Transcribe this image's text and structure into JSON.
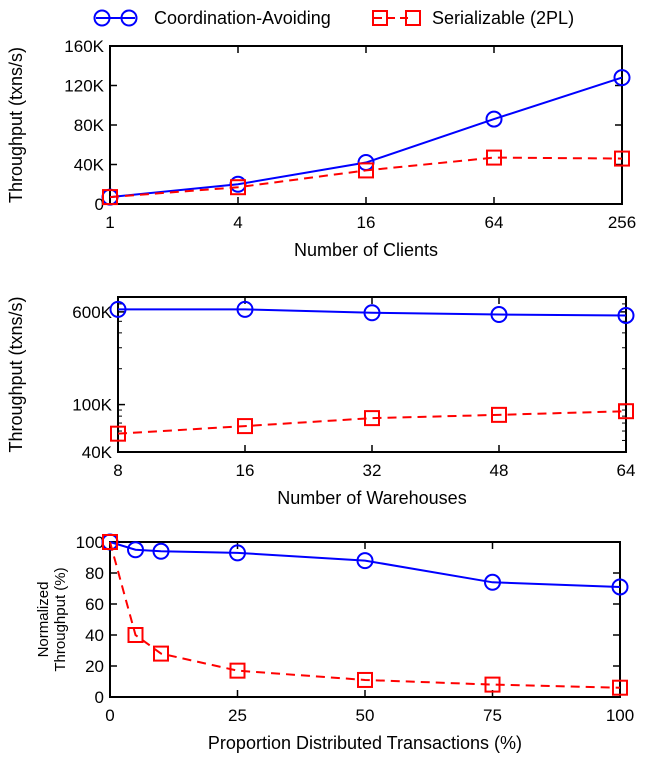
{
  "legend": {
    "series": [
      {
        "name": "Coordination-Avoiding",
        "color": "#0000ff",
        "marker": "circle",
        "dash": "solid"
      },
      {
        "name": "Serializable (2PL)",
        "color": "#ff0000",
        "marker": "square",
        "dash": "dashed"
      }
    ]
  },
  "chart_data": [
    {
      "type": "line",
      "xlabel": "Number of Clients",
      "ylabel": "Throughput (txns/s)",
      "xscale": "log2",
      "x": [
        1,
        4,
        16,
        64,
        256
      ],
      "xticks": [
        "1",
        "4",
        "16",
        "64",
        "256"
      ],
      "ylim": [
        0,
        160000
      ],
      "yticks": [
        0,
        40000,
        80000,
        120000,
        160000
      ],
      "ytick_labels": [
        "0",
        "40K",
        "80K",
        "120K",
        "160K"
      ],
      "series": [
        {
          "name": "Coordination-Avoiding",
          "values": [
            7000,
            20000,
            42000,
            86000,
            128000
          ]
        },
        {
          "name": "Serializable (2PL)",
          "values": [
            7000,
            17000,
            34000,
            47000,
            46000
          ]
        }
      ]
    },
    {
      "type": "line",
      "xlabel": "Number of Warehouses",
      "ylabel": "Throughput (txns/s)",
      "xscale": "log2",
      "x": [
        8,
        16,
        32,
        48,
        64
      ],
      "xticks": [
        "8",
        "16",
        "32",
        "48",
        "64"
      ],
      "yscale": "log",
      "ylim": [
        40000,
        800000
      ],
      "yticks": [
        40000,
        100000,
        600000
      ],
      "ytick_labels": [
        "40K",
        "100K",
        "600K"
      ],
      "series": [
        {
          "name": "Coordination-Avoiding",
          "values": [
            630000,
            630000,
            590000,
            570000,
            560000
          ]
        },
        {
          "name": "Serializable (2PL)",
          "values": [
            57000,
            66000,
            77000,
            82000,
            88000
          ]
        }
      ]
    },
    {
      "type": "line",
      "xlabel": "Proportion Distributed Transactions (%)",
      "ylabel": "Normalized\nThroughput (%)",
      "xlim": [
        0,
        100
      ],
      "x": [
        0,
        5,
        10,
        25,
        50,
        75,
        100
      ],
      "xticks": [
        "0",
        "25",
        "50",
        "75",
        "100"
      ],
      "ylim": [
        0,
        100
      ],
      "yticks": [
        "0",
        "20",
        "40",
        "60",
        "80",
        "100"
      ],
      "series": [
        {
          "name": "Coordination-Avoiding",
          "values": [
            100,
            95,
            94,
            93,
            88,
            74,
            71
          ]
        },
        {
          "name": "Serializable (2PL)",
          "values": [
            100,
            40,
            28,
            17,
            11,
            8,
            6
          ]
        }
      ]
    }
  ]
}
